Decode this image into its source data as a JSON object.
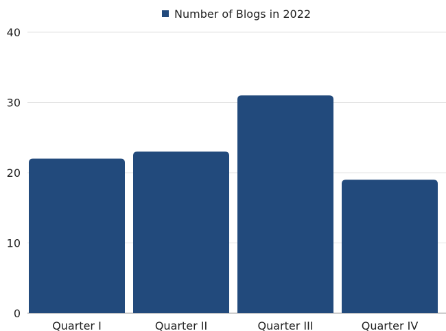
{
  "chart_data": {
    "type": "bar",
    "title": "",
    "xlabel": "",
    "ylabel": "",
    "categories": [
      "Quarter I",
      "Quarter II",
      "Quarter III",
      "Quarter IV"
    ],
    "series": [
      {
        "name": "Number of Blogs in 2022",
        "values": [
          22,
          23,
          31,
          19
        ],
        "color": "#224a7c"
      }
    ],
    "ylim": [
      0,
      40
    ],
    "yticks": [
      0,
      10,
      20,
      30,
      40
    ],
    "grid": true,
    "legend": "top-center"
  }
}
